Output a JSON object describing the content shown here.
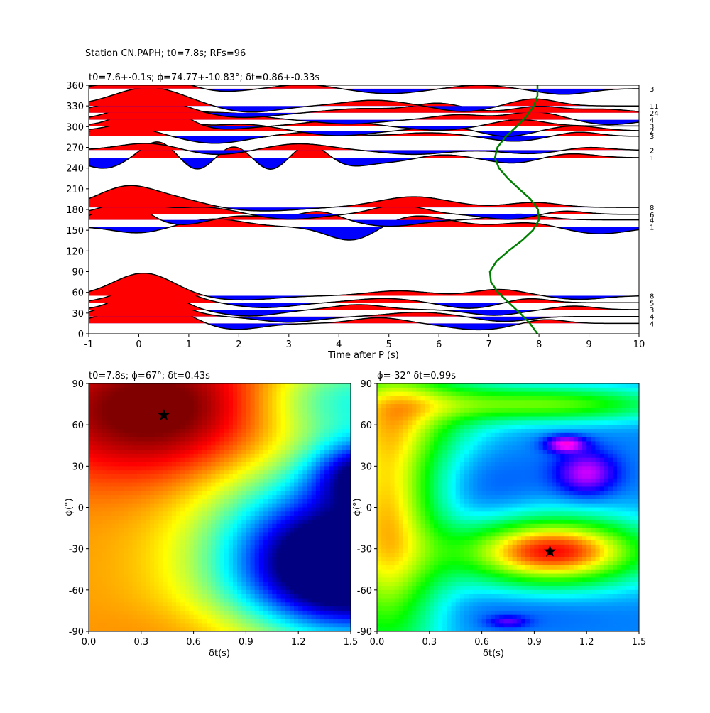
{
  "suptitle": "Station CN.PAPH; t0=7.8s; RFs=96",
  "chart_data": [
    {
      "type": "line",
      "title": "t0=7.6+-0.1s; ϕ=74.77+-10.83°; δt=0.86+-0.33s",
      "xlabel": "Time after P (s)",
      "ylabel": "",
      "xlim": [
        -1,
        10
      ],
      "ylim": [
        0,
        360
      ],
      "xticks": [
        -1,
        0,
        1,
        2,
        3,
        4,
        5,
        6,
        7,
        8,
        9,
        10
      ],
      "yticks": [
        0,
        30,
        60,
        90,
        120,
        150,
        180,
        210,
        240,
        270,
        300,
        330,
        360
      ],
      "pos_color": "#ff0000",
      "neg_color": "#0000ff",
      "t0_curve_color": "#008000",
      "traces": [
        {
          "baz": 15,
          "count": "4",
          "p": [
            [
              0.2,
              31,
              0.7
            ],
            [
              1.8,
              -10,
              0.6
            ],
            [
              4.8,
              8,
              0.5
            ],
            [
              6.8,
              -9,
              0.6
            ],
            [
              8.1,
              6,
              0.4
            ]
          ]
        },
        {
          "baz": 25,
          "count": "4",
          "p": [
            [
              0.1,
              35,
              0.6
            ],
            [
              3.0,
              -8,
              0.6
            ],
            [
              5.6,
              6,
              0.6
            ],
            [
              7.3,
              -7,
              0.5
            ]
          ]
        },
        {
          "baz": 35,
          "count": "3",
          "p": [
            [
              0.2,
              36,
              0.5
            ],
            [
              2.2,
              -9,
              0.6
            ],
            [
              4.4,
              7,
              0.5
            ],
            [
              7.1,
              -8,
              0.5
            ],
            [
              8.7,
              5,
              0.4
            ]
          ]
        },
        {
          "baz": 45,
          "count": "5",
          "p": [
            [
              0.3,
              28,
              0.6
            ],
            [
              2.5,
              -7,
              0.6
            ],
            [
              4.9,
              6,
              0.6
            ],
            [
              6.6,
              -8,
              0.5
            ],
            [
              7.8,
              6,
              0.4
            ]
          ]
        },
        {
          "baz": 55,
          "count": "8",
          "p": [
            [
              0.1,
              32,
              0.6
            ],
            [
              2.0,
              -6,
              0.7
            ],
            [
              5.2,
              7,
              0.6
            ],
            [
              7.2,
              9,
              0.5
            ],
            [
              8.8,
              -5,
              0.5
            ]
          ]
        },
        {
          "baz": 155,
          "count": "1",
          "p": [
            [
              0.0,
              -9,
              0.5
            ],
            [
              1.5,
              11,
              0.6
            ],
            [
              4.3,
              -22,
              0.5
            ],
            [
              5.5,
              16,
              0.7
            ],
            [
              7.8,
              6,
              0.5
            ],
            [
              9.2,
              -10,
              0.6
            ]
          ]
        },
        {
          "baz": 165,
          "count": "4",
          "p": [
            [
              -0.3,
              28,
              0.4
            ],
            [
              0.9,
              -8,
              0.5
            ],
            [
              2.0,
              6,
              0.6
            ],
            [
              3.6,
              12,
              0.4
            ],
            [
              5.0,
              -9,
              0.6
            ],
            [
              7.6,
              8,
              0.5
            ]
          ]
        },
        {
          "baz": 173,
          "count": "6",
          "p": [
            [
              -0.2,
              18,
              0.5
            ],
            [
              1.3,
              10,
              0.6
            ],
            [
              3.0,
              -7,
              0.6
            ],
            [
              5.2,
              13,
              0.5
            ],
            [
              7.4,
              -7,
              0.5
            ],
            [
              8.5,
              5,
              0.4
            ]
          ]
        },
        {
          "baz": 183,
          "count": "8",
          "p": [
            [
              -0.2,
              30,
              0.6
            ],
            [
              0.9,
              8,
              0.5
            ],
            [
              2.5,
              -5,
              0.7
            ],
            [
              5.5,
              15,
              0.7
            ],
            [
              7.9,
              7,
              0.5
            ]
          ]
        },
        {
          "baz": 255,
          "count": "1",
          "p": [
            [
              -0.7,
              -15,
              0.4
            ],
            [
              0.4,
              24,
              0.35
            ],
            [
              1.2,
              -22,
              0.35
            ],
            [
              1.9,
              21,
              0.4
            ],
            [
              2.6,
              -22,
              0.35
            ],
            [
              3.4,
              21,
              0.35
            ],
            [
              4.2,
              -11,
              0.4
            ],
            [
              5.1,
              -6,
              0.5
            ],
            [
              6.0,
              5,
              0.5
            ],
            [
              7.5,
              -8,
              0.5
            ],
            [
              8.6,
              6,
              0.5
            ]
          ]
        },
        {
          "baz": 266,
          "count": "2",
          "p": [
            [
              0.2,
              10,
              0.6
            ],
            [
              1.5,
              -7,
              0.6
            ],
            [
              3.2,
              9,
              0.6
            ],
            [
              5.5,
              -6,
              0.6
            ],
            [
              7.8,
              -5,
              0.5
            ],
            [
              9.0,
              4,
              0.4
            ]
          ]
        },
        {
          "baz": 286,
          "count": "3",
          "p": [
            [
              -0.3,
              14,
              0.6
            ],
            [
              1.5,
              -10,
              0.6
            ],
            [
              3.5,
              6,
              0.6
            ],
            [
              5.8,
              5,
              0.6
            ],
            [
              7.5,
              -7,
              0.5
            ],
            [
              8.8,
              6,
              0.4
            ]
          ]
        },
        {
          "baz": 294,
          "count": "2",
          "p": [
            [
              0.3,
              20,
              0.6
            ],
            [
              2.1,
              9,
              0.6
            ],
            [
              4.0,
              -7,
              0.6
            ],
            [
              6.2,
              6,
              0.6
            ],
            [
              7.3,
              -9,
              0.5
            ],
            [
              8.7,
              7,
              0.5
            ]
          ]
        },
        {
          "baz": 301,
          "count": "3",
          "p": [
            [
              0.3,
              34,
              0.55
            ],
            [
              1.5,
              -6,
              0.6
            ],
            [
              3.9,
              7,
              0.6
            ],
            [
              6.0,
              -6,
              0.6
            ],
            [
              7.6,
              9,
              0.5
            ]
          ]
        },
        {
          "baz": 310,
          "count": "4",
          "p": [
            [
              0.2,
              26,
              0.6
            ],
            [
              1.8,
              9,
              0.6
            ],
            [
              4.2,
              -6,
              0.6
            ],
            [
              6.4,
              7,
              0.5
            ],
            [
              7.9,
              11,
              0.5
            ],
            [
              9.4,
              -7,
              0.5
            ]
          ]
        },
        {
          "baz": 320,
          "count": "24",
          "p": [
            [
              0.1,
              24,
              0.7
            ],
            [
              2.0,
              -7,
              0.7
            ],
            [
              4.5,
              6,
              0.7
            ],
            [
              6.0,
              13,
              0.5
            ],
            [
              8.0,
              9,
              0.5
            ],
            [
              9.3,
              5,
              0.5
            ]
          ]
        },
        {
          "baz": 330,
          "count": "11",
          "p": [
            [
              0.2,
              26,
              0.7
            ],
            [
              2.2,
              -9,
              0.6
            ],
            [
              4.7,
              8,
              0.6
            ],
            [
              6.5,
              -8,
              0.5
            ],
            [
              7.9,
              10,
              0.45
            ]
          ]
        },
        {
          "baz": 355,
          "count": "3",
          "p": [
            [
              0.2,
              18,
              0.65
            ],
            [
              1.6,
              -5,
              0.5
            ],
            [
              3.3,
              6,
              0.5
            ],
            [
              5.0,
              -7,
              0.6
            ],
            [
              6.8,
              5,
              0.5
            ],
            [
              8.5,
              -8,
              0.5
            ]
          ]
        }
      ],
      "t0_curve": {
        "baz": [
          0,
          15,
          30,
          45,
          60,
          75,
          90,
          105,
          120,
          135,
          150,
          165,
          180,
          195,
          210,
          225,
          240,
          255,
          270,
          285,
          300,
          315,
          330,
          345,
          360
        ],
        "time": [
          7.97,
          7.82,
          7.62,
          7.4,
          7.18,
          7.04,
          7.02,
          7.15,
          7.39,
          7.66,
          7.88,
          8.0,
          7.98,
          7.83,
          7.6,
          7.38,
          7.2,
          7.12,
          7.17,
          7.33,
          7.55,
          7.75,
          7.9,
          7.97,
          7.97
        ]
      }
    },
    {
      "type": "heatmap",
      "title": "t0=7.8s; ϕ=67°; δt=0.43s",
      "xlabel": "δt(s)",
      "ylabel": "ϕ(°)",
      "xlim": [
        0,
        1.5
      ],
      "ylim": [
        -90,
        90
      ],
      "xticks": [
        "0.0",
        "0.3",
        "0.6",
        "0.9",
        "1.2",
        "1.5"
      ],
      "yticks": [
        "-90",
        "-60",
        "-30",
        "0",
        "30",
        "60",
        "90"
      ],
      "colormap": "jet",
      "best_fit": {
        "dt": 0.43,
        "phi": 67
      },
      "field": {
        "base": 0.72,
        "blobs": [
          {
            "dt": 0.45,
            "phi": 70,
            "amp": 0.35,
            "sdt": 0.55,
            "sphi": 35
          },
          {
            "dt": 1.55,
            "phi": -45,
            "amp": -0.85,
            "sdt": 0.45,
            "sphi": 34
          },
          {
            "dt": 1.6,
            "phi": 25,
            "amp": -0.55,
            "sdt": 0.22,
            "sphi": 18
          },
          {
            "dt": 1.2,
            "phi": -10,
            "amp": -0.28,
            "sdt": 0.45,
            "sphi": 55
          },
          {
            "dt": 1.5,
            "phi": 80,
            "amp": -0.3,
            "sdt": 0.4,
            "sphi": 22
          },
          {
            "dt": 0.9,
            "phi": -90,
            "amp": 0.05,
            "sdt": 0.5,
            "sphi": 15
          }
        ]
      }
    },
    {
      "type": "heatmap",
      "title": "ϕ=-32° δt=0.99s",
      "xlabel": "δt(s)",
      "ylabel": "ϕ(°)",
      "xlim": [
        0,
        1.5
      ],
      "ylim": [
        -90,
        90
      ],
      "xticks": [
        "0.0",
        "0.3",
        "0.6",
        "0.9",
        "1.2",
        "1.5"
      ],
      "yticks": [
        "-90",
        "-60",
        "-30",
        "0",
        "30",
        "60",
        "90"
      ],
      "colormap": "hsv",
      "best_fit": {
        "dt": 0.99,
        "phi": -32
      },
      "field": {
        "base": 0.58,
        "blobs": [
          {
            "dt": 1.0,
            "phi": -32,
            "amp": -0.58,
            "sdt": 0.38,
            "sphi": 17
          },
          {
            "dt": 0.05,
            "phi": -10,
            "amp": -0.45,
            "sdt": 0.22,
            "sphi": 70
          },
          {
            "dt": 0.2,
            "phi": 70,
            "amp": -0.22,
            "sdt": 0.35,
            "sphi": 25
          },
          {
            "dt": 1.2,
            "phi": 25,
            "amp": 0.22,
            "sdt": 0.12,
            "sphi": 11
          },
          {
            "dt": 1.08,
            "phi": 46,
            "amp": 0.26,
            "sdt": 0.08,
            "sphi": 4
          },
          {
            "dt": 0.75,
            "phi": -83,
            "amp": 0.13,
            "sdt": 0.08,
            "sphi": 3
          },
          {
            "dt": 1.0,
            "phi": 75,
            "amp": -0.3,
            "sdt": 0.5,
            "sphi": 9
          },
          {
            "dt": 0.6,
            "phi": 20,
            "amp": 0.04,
            "sdt": 0.25,
            "sphi": 35
          },
          {
            "dt": 0.8,
            "phi": -75,
            "amp": 0.03,
            "sdt": 0.4,
            "sphi": 10
          }
        ]
      }
    }
  ]
}
